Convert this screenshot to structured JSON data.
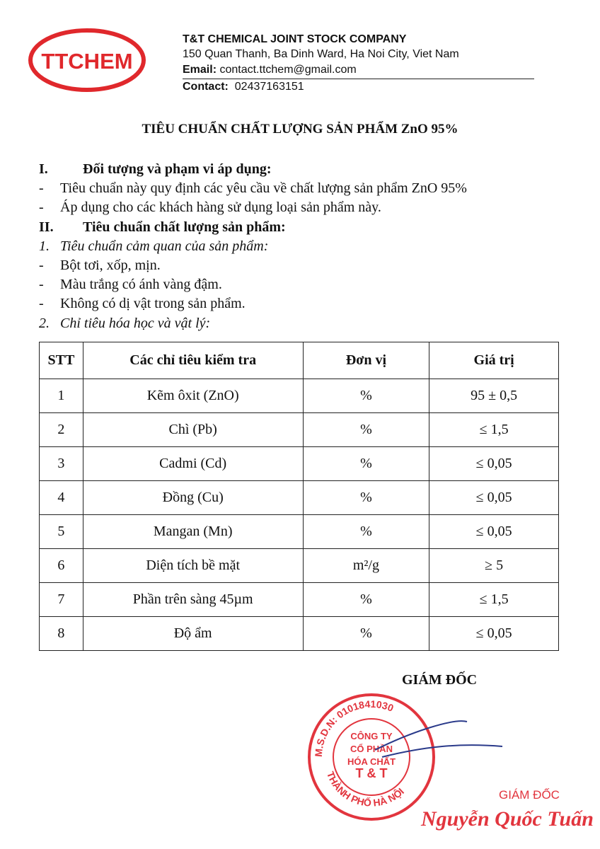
{
  "header": {
    "logo": "TTCHEM",
    "company": "T&T CHEMICAL JOINT STOCK COMPANY",
    "address": "150 Quan Thanh, Ba Dinh Ward, Ha Noi City, Viet Nam",
    "email_label": "Email:",
    "email": "contact.ttchem@gmail.com",
    "contact_label": "Contact:",
    "contact": "02437163151"
  },
  "title": "TIÊU CHUẨN CHẤT LƯỢNG SẢN PHẨM ZnO 95%",
  "lines": [
    {
      "marker": "I.",
      "text": "Đối tượng và phạm vi áp dụng:",
      "style": "heading"
    },
    {
      "marker": "-",
      "text": "Tiêu chuẩn này quy định các yêu cầu về chất lượng sản phẩm ZnO 95%",
      "style": "normal"
    },
    {
      "marker": "-",
      "text": "Áp dụng cho các khách hàng sử dụng loại sản phẩm này.",
      "style": "normal"
    },
    {
      "marker": "II.",
      "text": "Tiêu chuẩn chất lượng sản phẩm:",
      "style": "heading"
    },
    {
      "marker": "1.",
      "text": "Tiêu chuẩn cảm quan của sản phẩm:",
      "style": "italic"
    },
    {
      "marker": "-",
      "text": "Bột tơi, xốp, mịn.",
      "style": "normal"
    },
    {
      "marker": "-",
      "text": "Màu trắng có ánh vàng đậm.",
      "style": "normal"
    },
    {
      "marker": "-",
      "text": "Không có dị vật trong sản phẩm.",
      "style": "normal"
    },
    {
      "marker": "2.",
      "text": "Chỉ tiêu hóa học và vật lý:",
      "style": "italic"
    }
  ],
  "table": {
    "header": [
      "STT",
      "Các chỉ tiêu kiểm tra",
      "Đơn vị",
      "Giá trị"
    ],
    "rows": [
      [
        "1",
        "Kẽm ôxit (ZnO)",
        "%",
        "95 ± 0,5"
      ],
      [
        "2",
        "Chì (Pb)",
        "%",
        "≤ 1,5"
      ],
      [
        "3",
        "Cadmi (Cd)",
        "%",
        "≤ 0,05"
      ],
      [
        "4",
        "Đồng (Cu)",
        "%",
        "≤ 0,05"
      ],
      [
        "5",
        "Mangan (Mn)",
        "%",
        "≤ 0,05"
      ],
      [
        "6",
        "Diện tích bề mặt",
        "m²/g",
        "≥ 5"
      ],
      [
        "7",
        "Phần trên sàng 45µm",
        "%",
        "≤ 1,5"
      ],
      [
        "8",
        "Độ ẩm",
        "%",
        "≤ 0,05"
      ]
    ]
  },
  "signature": {
    "role": "GIÁM ĐỐC",
    "stamp_ring_top": "M.S.D.N: 0101841030",
    "stamp_ring_bottom": "THÀNH PHỐ HÀ NỘI",
    "stamp_lines": [
      "CÔNG TY",
      "CỔ PHẦN",
      "HÓA CHẤT",
      "T & T"
    ],
    "signer_role": "GIÁM ĐỐC",
    "signer_name": "Nguyễn Quốc Tuấn"
  }
}
